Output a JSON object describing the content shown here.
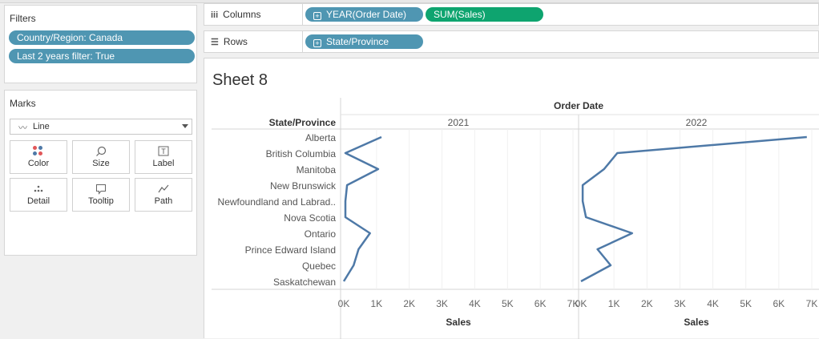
{
  "filters": {
    "title": "Filters",
    "items": [
      "Country/Region: Canada",
      "Last 2 years filter: True"
    ]
  },
  "marks": {
    "title": "Marks",
    "mark_type": "Line",
    "buttons": {
      "color": "Color",
      "size": "Size",
      "label": "Label",
      "detail": "Detail",
      "tooltip": "Tooltip",
      "path": "Path"
    }
  },
  "shelves": {
    "columns_label": "Columns",
    "rows_label": "Rows",
    "columns_pills": [
      "YEAR(Order Date)",
      "SUM(Sales)"
    ],
    "rows_pills": [
      "State/Province"
    ]
  },
  "sheet": {
    "title": "Sheet 8"
  },
  "colors": {
    "pill_dimension": "#4f96b2",
    "pill_measure": "#0ea46f",
    "line": "#4e79a7"
  },
  "chart_data": {
    "type": "line",
    "orientation": "horizontal",
    "column_header": "Order Date",
    "row_header": "State/Province",
    "xlabel": "Sales",
    "categories": [
      "Alberta",
      "British Columbia",
      "Manitoba",
      "New Brunswick",
      "Newfoundland and Labrad..",
      "Nova Scotia",
      "Ontario",
      "Prince Edward Island",
      "Quebec",
      "Saskatchewan"
    ],
    "xlim": [
      0,
      7000
    ],
    "x_ticks": [
      "0K",
      "1K",
      "2K",
      "3K",
      "4K",
      "5K",
      "6K",
      "7K"
    ],
    "series": [
      {
        "name": "2021",
        "values": [
          1150,
          50,
          1050,
          100,
          50,
          50,
          800,
          450,
          300,
          0
        ]
      },
      {
        "name": "2022",
        "values": [
          6850,
          1100,
          700,
          50,
          50,
          150,
          1550,
          500,
          900,
          0
        ]
      }
    ],
    "grid": true
  }
}
